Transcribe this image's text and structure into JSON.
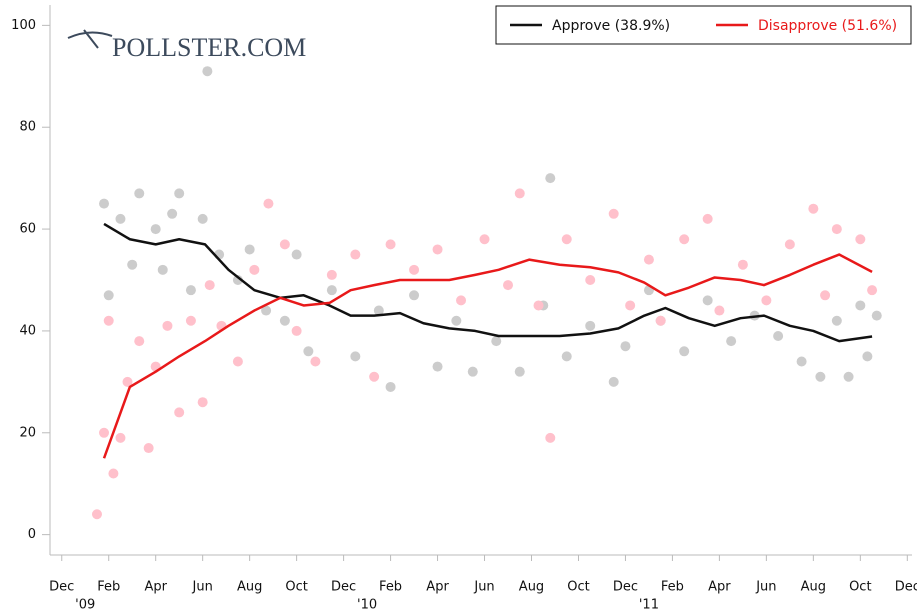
{
  "chart_data": {
    "type": "line",
    "logo": "POLLSTER.COM",
    "x": [
      1.8,
      2.9,
      4.0,
      5.0,
      6.1,
      7.1,
      8.2,
      9.3,
      10.3,
      11.4,
      12.3,
      13.3,
      14.4,
      15.4,
      16.5,
      17.6,
      18.6,
      19.9,
      21.2,
      22.5,
      23.7,
      24.8,
      25.7,
      26.7,
      27.8,
      28.9,
      29.9,
      31.0,
      32.0,
      33.1,
      34.5
    ],
    "series": [
      {
        "name": "Approve (38.9%)",
        "color": "#111111",
        "values": [
          61,
          58,
          57,
          58,
          57,
          52,
          48,
          46.5,
          47,
          45,
          43,
          43,
          43.5,
          41.5,
          40.5,
          40,
          39,
          39,
          39,
          39.5,
          40.5,
          43,
          44.5,
          42.5,
          41,
          42.5,
          43,
          41,
          40,
          38,
          38.9
        ]
      },
      {
        "name": "Disapprove (51.6%)",
        "color": "#e8191a",
        "values": [
          15,
          29,
          32,
          35,
          38,
          41,
          44,
          46.5,
          45,
          45.5,
          48,
          49,
          50,
          50,
          50,
          51,
          52,
          54,
          53,
          52.5,
          51.5,
          49.5,
          47,
          48.5,
          50.5,
          50,
          49,
          51,
          53,
          55,
          51.6
        ]
      }
    ],
    "scatter": [
      {
        "color": "#cccccc",
        "x": [
          1.8,
          2,
          2.5,
          3,
          3.3,
          4,
          4.3,
          4.7,
          5,
          5.5,
          6,
          6.2,
          6.7,
          7.5,
          8,
          8.7,
          9.5,
          10,
          10.5,
          11.5,
          12.5,
          13.5,
          14,
          15,
          16,
          16.8,
          17.5,
          18.5,
          19.5,
          20.5,
          20.8,
          21.5,
          22.5,
          23.5,
          24,
          25,
          25.5,
          26.5,
          27.5,
          28.5,
          29.5,
          30.5,
          31.5,
          32.3,
          33,
          33.5,
          34,
          34.3,
          34.7
        ],
        "y": [
          65,
          47,
          62,
          53,
          67,
          60,
          52,
          63,
          67,
          48,
          62,
          91,
          55,
          50,
          56,
          44,
          42,
          55,
          36,
          48,
          35,
          44,
          29,
          47,
          33,
          42,
          32,
          38,
          32,
          45,
          70,
          35,
          41,
          30,
          37,
          48,
          42,
          36,
          46,
          38,
          43,
          39,
          34,
          31,
          42,
          31,
          45,
          35,
          43
        ]
      },
      {
        "color": "#ffc0cb",
        "x": [
          1.5,
          1.8,
          2,
          2.2,
          2.5,
          2.8,
          3.3,
          3.7,
          4,
          4.5,
          5,
          5.5,
          6,
          6.3,
          6.8,
          7.5,
          8.2,
          8.8,
          9.5,
          10,
          10.8,
          11.5,
          12.5,
          13.3,
          14,
          15,
          16,
          17,
          18,
          19,
          19.5,
          20.3,
          20.8,
          21.5,
          22.5,
          23.5,
          24.2,
          25,
          25.5,
          26.5,
          27.5,
          28,
          29,
          30,
          31,
          32,
          32.5,
          33,
          34,
          34.5
        ],
        "y": [
          4,
          20,
          42,
          12,
          19,
          30,
          38,
          17,
          33,
          41,
          24,
          42,
          26,
          49,
          41,
          34,
          52,
          65,
          57,
          40,
          34,
          51,
          55,
          31,
          57,
          52,
          56,
          46,
          58,
          49,
          67,
          45,
          19,
          58,
          50,
          63,
          45,
          54,
          42,
          58,
          62,
          44,
          53,
          46,
          57,
          64,
          47,
          60,
          58,
          48
        ]
      }
    ],
    "xlim": [
      -0.5,
      36.2
    ],
    "xticks": [
      {
        "value": 0,
        "label": "Dec"
      },
      {
        "value": 2,
        "label": "Feb"
      },
      {
        "value": 4,
        "label": "Apr"
      },
      {
        "value": 6,
        "label": "Jun"
      },
      {
        "value": 8,
        "label": "Aug"
      },
      {
        "value": 10,
        "label": "Oct"
      },
      {
        "value": 12,
        "label": "Dec"
      },
      {
        "value": 14,
        "label": "Feb"
      },
      {
        "value": 16,
        "label": "Apr"
      },
      {
        "value": 18,
        "label": "Jun"
      },
      {
        "value": 20,
        "label": "Aug"
      },
      {
        "value": 22,
        "label": "Oct"
      },
      {
        "value": 24,
        "label": "Dec"
      },
      {
        "value": 26,
        "label": "Feb"
      },
      {
        "value": 28,
        "label": "Apr"
      },
      {
        "value": 30,
        "label": "Jun"
      },
      {
        "value": 32,
        "label": "Aug"
      },
      {
        "value": 34,
        "label": "Oct"
      },
      {
        "value": 36,
        "label": "Dec"
      }
    ],
    "year_labels": [
      {
        "value": 1,
        "label": "'09"
      },
      {
        "value": 13,
        "label": "'10"
      },
      {
        "value": 25,
        "label": "'11"
      }
    ],
    "ylim": [
      -4,
      104
    ],
    "yticks": [
      0,
      20,
      40,
      60,
      80,
      100
    ],
    "grid": false,
    "legend": "top-right"
  }
}
